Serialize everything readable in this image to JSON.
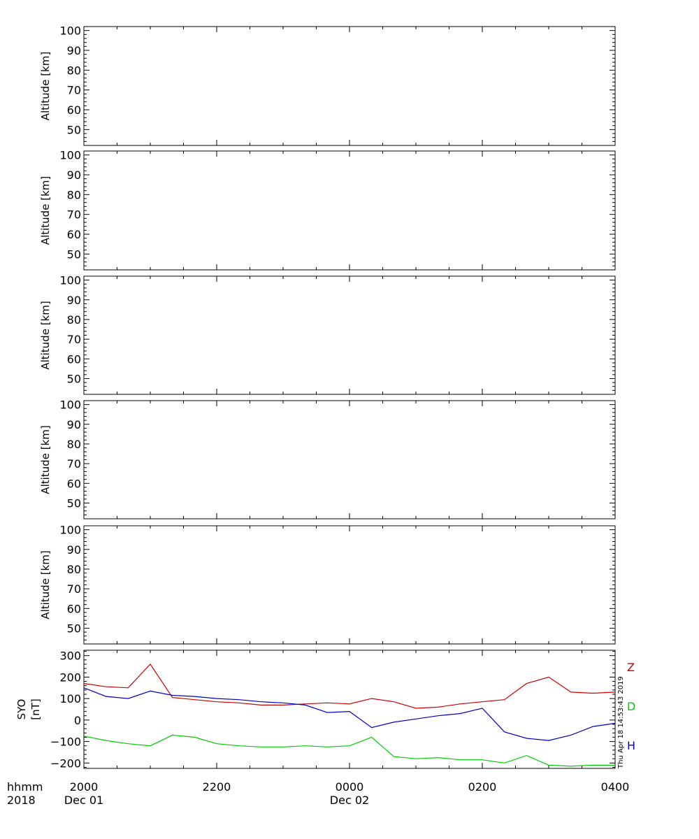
{
  "chart_data": [
    {
      "type": "line",
      "ylabel": "Altitude [km]",
      "ylim": [
        42,
        102
      ],
      "yticks": [
        50,
        60,
        70,
        80,
        90,
        100
      ],
      "xlim": [
        "2018-12-01 20:00",
        "2018-12-02 04:00"
      ],
      "series": []
    },
    {
      "type": "line",
      "ylabel": "Altitude [km]",
      "ylim": [
        42,
        102
      ],
      "yticks": [
        50,
        60,
        70,
        80,
        90,
        100
      ],
      "xlim": [
        "2018-12-01 20:00",
        "2018-12-02 04:00"
      ],
      "series": []
    },
    {
      "type": "line",
      "ylabel": "Altitude [km]",
      "ylim": [
        42,
        102
      ],
      "yticks": [
        50,
        60,
        70,
        80,
        90,
        100
      ],
      "xlim": [
        "2018-12-01 20:00",
        "2018-12-02 04:00"
      ],
      "series": []
    },
    {
      "type": "line",
      "ylabel": "Altitude [km]",
      "ylim": [
        42,
        102
      ],
      "yticks": [
        50,
        60,
        70,
        80,
        90,
        100
      ],
      "xlim": [
        "2018-12-01 20:00",
        "2018-12-02 04:00"
      ],
      "series": []
    },
    {
      "type": "line",
      "ylabel": "Altitude [km]",
      "ylim": [
        42,
        102
      ],
      "yticks": [
        50,
        60,
        70,
        80,
        90,
        100
      ],
      "xlim": [
        "2018-12-01 20:00",
        "2018-12-02 04:00"
      ],
      "series": []
    },
    {
      "type": "line",
      "ylabel": "SYO",
      "ylabel2": "[nT]",
      "ylim": [
        -225,
        325
      ],
      "yticks": [
        -200,
        -100,
        0,
        100,
        200,
        300
      ],
      "xlim": [
        "2018-12-01 20:00",
        "2018-12-02 04:00"
      ],
      "x": [
        "2018-12-01 20:00",
        "2018-12-01 20:20",
        "2018-12-01 20:40",
        "2018-12-01 21:00",
        "2018-12-01 21:20",
        "2018-12-01 21:40",
        "2018-12-01 22:00",
        "2018-12-01 22:20",
        "2018-12-01 22:40",
        "2018-12-01 23:00",
        "2018-12-01 23:20",
        "2018-12-01 23:40",
        "2018-12-02 00:00",
        "2018-12-02 00:20",
        "2018-12-02 00:40",
        "2018-12-02 01:00",
        "2018-12-02 01:20",
        "2018-12-02 01:40",
        "2018-12-02 02:00",
        "2018-12-02 02:20",
        "2018-12-02 02:40",
        "2018-12-02 03:00",
        "2018-12-02 03:20",
        "2018-12-02 03:40",
        "2018-12-02 04:00"
      ],
      "series": [
        {
          "name": "Z",
          "color": "#cc0000",
          "values": [
            170,
            155,
            150,
            260,
            105,
            95,
            85,
            80,
            70,
            70,
            75,
            80,
            75,
            100,
            85,
            55,
            60,
            75,
            85,
            95,
            170,
            200,
            130,
            125,
            130
          ]
        },
        {
          "name": "D",
          "color": "#00cc00",
          "values": [
            -75,
            -95,
            -110,
            -120,
            -70,
            -80,
            -110,
            -120,
            -125,
            -125,
            -120,
            -125,
            -120,
            -80,
            -170,
            -180,
            -175,
            -185,
            -185,
            -200,
            -165,
            -210,
            -215,
            -210,
            -210
          ]
        },
        {
          "name": "H",
          "color": "#0000cc",
          "values": [
            150,
            110,
            100,
            135,
            115,
            110,
            100,
            95,
            85,
            80,
            70,
            35,
            40,
            -35,
            -10,
            5,
            20,
            30,
            55,
            -55,
            -85,
            -95,
            -70,
            -30,
            -15
          ]
        }
      ]
    }
  ],
  "axis_labels": {
    "time_row_label": "hhmm",
    "year_row_label": "2018",
    "x_ticks": [
      {
        "label": "2000",
        "date": "Dec 01",
        "x": "2018-12-01 20:00"
      },
      {
        "label": "2200",
        "date": "",
        "x": "2018-12-01 22:00"
      },
      {
        "label": "0000",
        "date": "Dec 02",
        "x": "2018-12-02 00:00"
      },
      {
        "label": "0200",
        "date": "",
        "x": "2018-12-02 02:00"
      },
      {
        "label": "0400",
        "date": "",
        "x": "2018-12-02 04:00"
      }
    ]
  },
  "legend": [
    {
      "label": "Z",
      "color": "#cc0000"
    },
    {
      "label": "D",
      "color": "#00cc00"
    },
    {
      "label": "H",
      "color": "#0000cc"
    }
  ],
  "timestamp_text": "Thu Apr 18 14:53:43 2019"
}
